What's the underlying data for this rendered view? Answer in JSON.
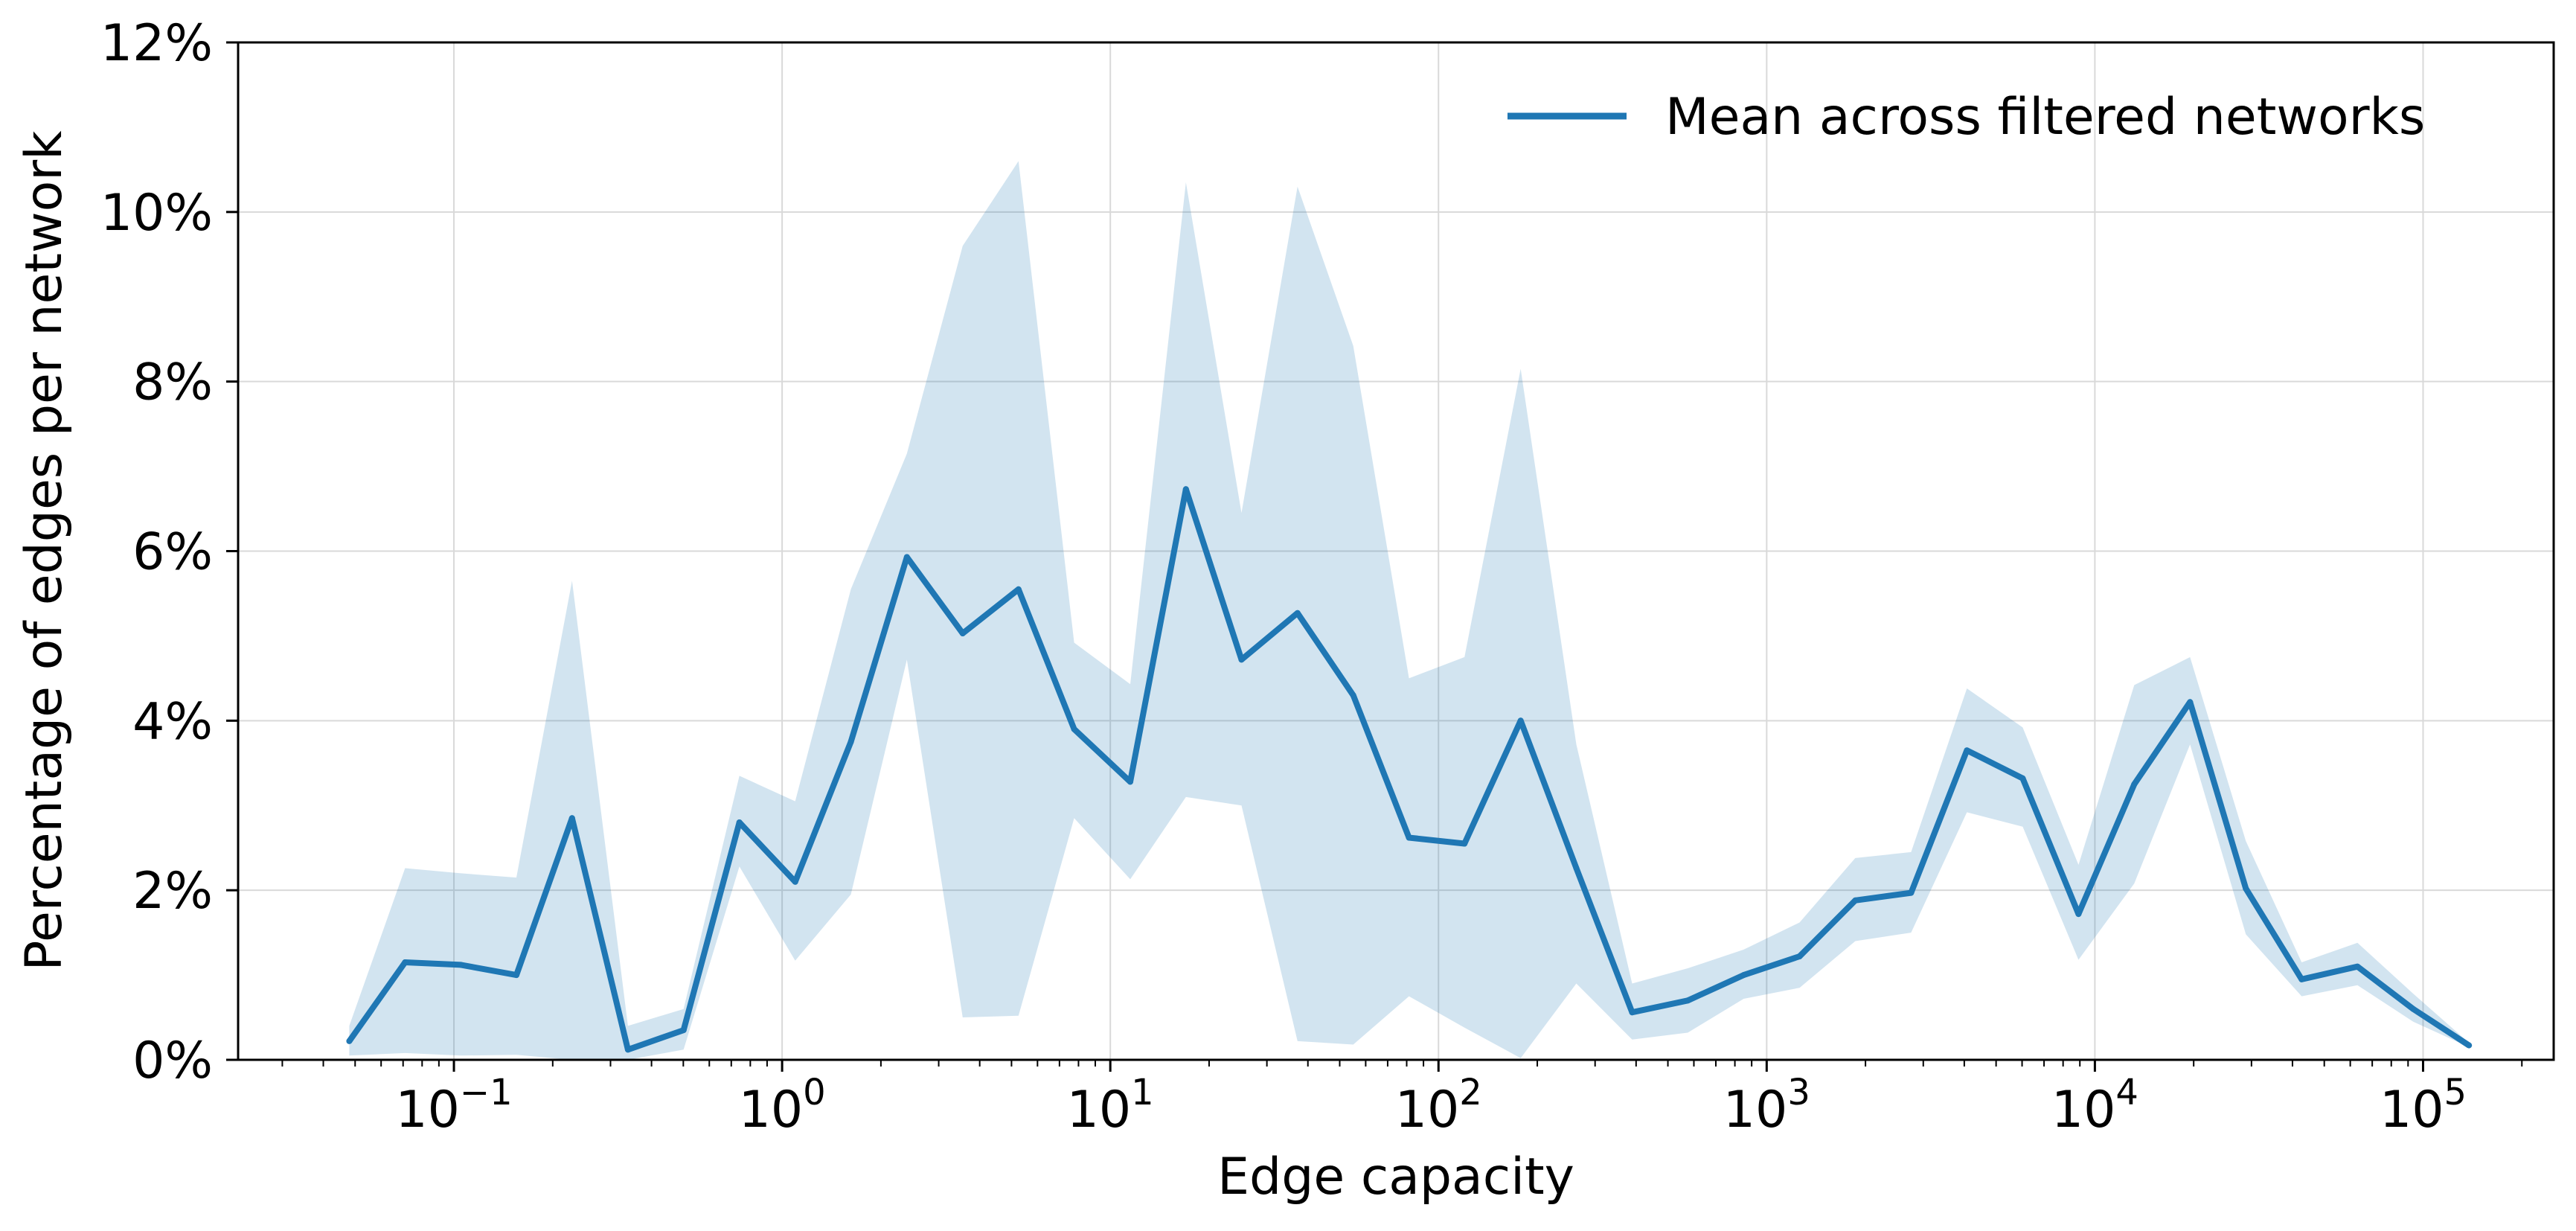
{
  "chart_data": {
    "type": "line",
    "title": "",
    "xlabel": "Edge capacity",
    "ylabel": "Percentage of edges per network",
    "xscale": "log",
    "xlim": [
      0.022,
      250000
    ],
    "ylim": [
      0,
      12
    ],
    "x_ticks": [
      {
        "value": 0.1,
        "base": "10",
        "exp": "−1"
      },
      {
        "value": 1,
        "base": "10",
        "exp": "0"
      },
      {
        "value": 10,
        "base": "10",
        "exp": "1"
      },
      {
        "value": 100,
        "base": "10",
        "exp": "2"
      },
      {
        "value": 1000,
        "base": "10",
        "exp": "3"
      },
      {
        "value": 10000,
        "base": "10",
        "exp": "4"
      },
      {
        "value": 100000,
        "base": "10",
        "exp": "5"
      }
    ],
    "y_ticks": [
      {
        "value": 0,
        "label": "0%"
      },
      {
        "value": 2,
        "label": "2%"
      },
      {
        "value": 4,
        "label": "4%"
      },
      {
        "value": 6,
        "label": "6%"
      },
      {
        "value": 8,
        "label": "8%"
      },
      {
        "value": 10,
        "label": "10%"
      },
      {
        "value": 12,
        "label": "12%"
      }
    ],
    "grid": true,
    "legend_position": "top-right",
    "colors": {
      "line": "#1f77b4",
      "band": "#1f77b4",
      "grid": "#d9d9d9",
      "axis": "#000000"
    },
    "series": [
      {
        "name": "Mean across filtered networks",
        "x": [
          0.048,
          0.071,
          0.105,
          0.155,
          0.229,
          0.339,
          0.501,
          0.741,
          1.096,
          1.62,
          2.4,
          3.55,
          5.25,
          7.76,
          11.5,
          17.0,
          25.1,
          37.2,
          55.0,
          81.3,
          120,
          178,
          263,
          389,
          575,
          851,
          1259,
          1862,
          2754,
          4074,
          6026,
          8913,
          13183,
          19498,
          28840,
          42658,
          63096,
          93325,
          138038
        ],
        "values": [
          0.22,
          1.15,
          1.12,
          1.0,
          2.85,
          0.12,
          0.35,
          2.8,
          2.1,
          3.75,
          5.93,
          5.03,
          5.55,
          3.9,
          3.28,
          6.73,
          4.72,
          5.27,
          4.3,
          2.62,
          2.55,
          4.0,
          2.26,
          0.56,
          0.7,
          1.0,
          1.22,
          1.88,
          1.97,
          3.65,
          3.32,
          1.72,
          3.25,
          4.22,
          2.02,
          0.95,
          1.1,
          0.6,
          0.17
        ],
        "band_upper": [
          0.4,
          2.26,
          2.2,
          2.15,
          5.65,
          0.4,
          0.6,
          3.35,
          3.05,
          5.55,
          7.15,
          9.6,
          10.6,
          4.92,
          4.43,
          10.35,
          6.45,
          10.3,
          8.42,
          4.5,
          4.75,
          8.15,
          3.72,
          0.9,
          1.08,
          1.3,
          1.62,
          2.38,
          2.45,
          4.38,
          3.92,
          2.3,
          4.42,
          4.75,
          2.58,
          1.15,
          1.38,
          0.78,
          0.2
        ],
        "band_lower": [
          0.05,
          0.08,
          0.05,
          0.06,
          0.0,
          0.0,
          0.12,
          2.28,
          1.17,
          1.95,
          4.72,
          0.5,
          0.52,
          2.85,
          2.13,
          3.1,
          3.0,
          0.22,
          0.18,
          0.75,
          0.38,
          0.02,
          0.9,
          0.24,
          0.32,
          0.72,
          0.85,
          1.4,
          1.5,
          2.92,
          2.75,
          1.18,
          2.08,
          3.72,
          1.48,
          0.75,
          0.88,
          0.45,
          0.15
        ]
      }
    ]
  }
}
